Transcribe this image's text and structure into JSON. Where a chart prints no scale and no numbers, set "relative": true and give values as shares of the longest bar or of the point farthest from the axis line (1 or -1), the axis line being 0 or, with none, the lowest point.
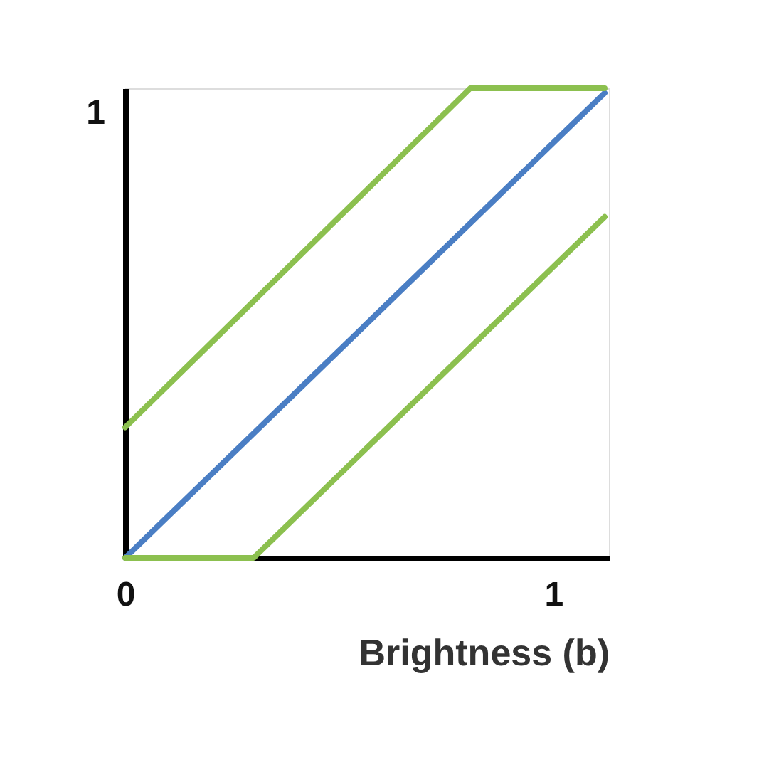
{
  "chart_data": {
    "type": "line",
    "xlabel": "Brightness (b)",
    "xlim": [
      0,
      1.13
    ],
    "xticks": [
      0,
      1
    ],
    "relative": true,
    "annotations": [
      "1"
    ],
    "grid": false,
    "legend": false,
    "marker": "none",
    "line_style": "solid",
    "series": [
      {
        "color": "#4a7ec4",
        "x": [
          0,
          1.12
        ],
        "values": [
          0,
          0.99
        ]
      },
      {
        "color": "#8cc04f",
        "x": [
          0,
          0.806,
          1.12
        ],
        "values": [
          0.278,
          1,
          1
        ]
      },
      {
        "color": "#8cc04f",
        "x": [
          0,
          0.3,
          1.12
        ],
        "values": [
          0,
          0,
          0.726
        ]
      }
    ]
  }
}
